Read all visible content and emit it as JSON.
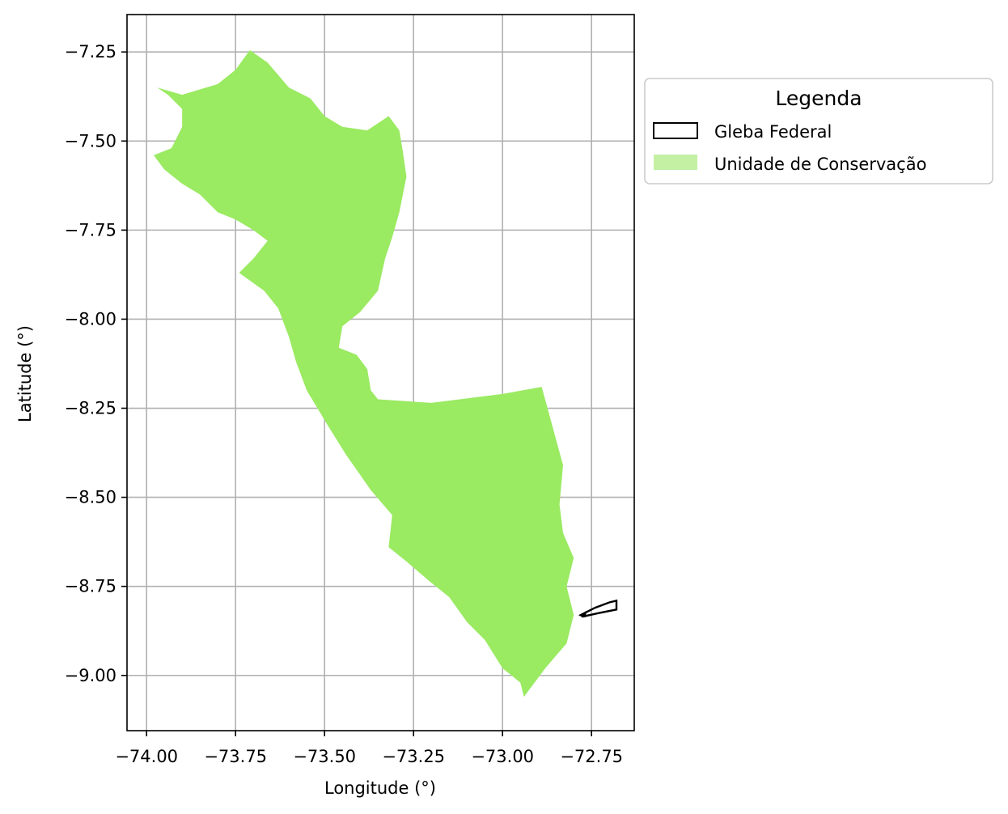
{
  "chart_data": {
    "type": "map",
    "xlabel": "Longitude (°)",
    "ylabel": "Latitude (°)",
    "xlim": [
      -74.055,
      -72.63
    ],
    "ylim": [
      -9.155,
      -7.145
    ],
    "grid": true,
    "xticks": [
      -74.0,
      -73.75,
      -73.5,
      -73.25,
      -73.0,
      -72.75
    ],
    "xtick_labels": [
      "−74.00",
      "−73.75",
      "−73.50",
      "−73.25",
      "−73.00",
      "−72.75"
    ],
    "yticks": [
      -7.25,
      -7.5,
      -7.75,
      -8.0,
      -8.25,
      -8.5,
      -8.75,
      -9.0
    ],
    "ytick_labels": [
      "−7.25",
      "−7.50",
      "−7.75",
      "−8.00",
      "−8.25",
      "−8.50",
      "−8.75",
      "−9.00"
    ],
    "legend": {
      "title": "Legenda",
      "placement": "outside upper right",
      "entries": [
        {
          "label": "Gleba Federal",
          "style": "outline",
          "color": "#000000"
        },
        {
          "label": "Unidade de Conservação",
          "style": "fill",
          "color": "#9aea62"
        }
      ]
    },
    "layers": [
      {
        "name": "Unidade de Conservação",
        "color": "#9aea62",
        "coordinates": [
          [
            -73.71,
            -7.245
          ],
          [
            -73.66,
            -7.28
          ],
          [
            -73.6,
            -7.35
          ],
          [
            -73.54,
            -7.38
          ],
          [
            -73.5,
            -7.43
          ],
          [
            -73.45,
            -7.46
          ],
          [
            -73.38,
            -7.47
          ],
          [
            -73.32,
            -7.43
          ],
          [
            -73.29,
            -7.47
          ],
          [
            -73.28,
            -7.53
          ],
          [
            -73.27,
            -7.6
          ],
          [
            -73.29,
            -7.7
          ],
          [
            -73.31,
            -7.77
          ],
          [
            -73.33,
            -7.83
          ],
          [
            -73.35,
            -7.92
          ],
          [
            -73.4,
            -7.98
          ],
          [
            -73.45,
            -8.02
          ],
          [
            -73.46,
            -8.08
          ],
          [
            -73.41,
            -8.1
          ],
          [
            -73.38,
            -8.14
          ],
          [
            -73.37,
            -8.2
          ],
          [
            -73.35,
            -8.225
          ],
          [
            -73.2,
            -8.235
          ],
          [
            -73.0,
            -8.21
          ],
          [
            -72.89,
            -8.19
          ],
          [
            -72.86,
            -8.3
          ],
          [
            -72.83,
            -8.41
          ],
          [
            -72.84,
            -8.52
          ],
          [
            -72.83,
            -8.6
          ],
          [
            -72.8,
            -8.67
          ],
          [
            -72.82,
            -8.75
          ],
          [
            -72.8,
            -8.83
          ],
          [
            -72.82,
            -8.91
          ],
          [
            -72.88,
            -8.98
          ],
          [
            -72.94,
            -9.06
          ],
          [
            -72.95,
            -9.02
          ],
          [
            -73.0,
            -8.98
          ],
          [
            -73.05,
            -8.9
          ],
          [
            -73.1,
            -8.85
          ],
          [
            -73.15,
            -8.78
          ],
          [
            -73.2,
            -8.74
          ],
          [
            -73.27,
            -8.68
          ],
          [
            -73.32,
            -8.64
          ],
          [
            -73.31,
            -8.55
          ],
          [
            -73.37,
            -8.48
          ],
          [
            -73.44,
            -8.38
          ],
          [
            -73.49,
            -8.3
          ],
          [
            -73.55,
            -8.2
          ],
          [
            -73.58,
            -8.12
          ],
          [
            -73.6,
            -8.05
          ],
          [
            -73.63,
            -7.97
          ],
          [
            -73.67,
            -7.92
          ],
          [
            -73.74,
            -7.87
          ],
          [
            -73.72,
            -7.85
          ],
          [
            -73.7,
            -7.83
          ],
          [
            -73.66,
            -7.78
          ],
          [
            -73.7,
            -7.75
          ],
          [
            -73.75,
            -7.72
          ],
          [
            -73.8,
            -7.7
          ],
          [
            -73.85,
            -7.65
          ],
          [
            -73.9,
            -7.62
          ],
          [
            -73.95,
            -7.58
          ],
          [
            -73.98,
            -7.54
          ],
          [
            -73.93,
            -7.52
          ],
          [
            -73.9,
            -7.46
          ],
          [
            -73.9,
            -7.41
          ],
          [
            -73.94,
            -7.37
          ],
          [
            -73.97,
            -7.35
          ],
          [
            -73.9,
            -7.37
          ],
          [
            -73.8,
            -7.34
          ],
          [
            -73.75,
            -7.3
          ]
        ]
      },
      {
        "name": "Gleba Federal",
        "color": "#000000",
        "coordinates": [
          [
            -72.78,
            -8.83
          ],
          [
            -72.74,
            -8.81
          ],
          [
            -72.7,
            -8.795
          ],
          [
            -72.68,
            -8.79
          ],
          [
            -72.68,
            -8.815
          ],
          [
            -72.73,
            -8.825
          ],
          [
            -72.775,
            -8.835
          ]
        ]
      }
    ]
  }
}
